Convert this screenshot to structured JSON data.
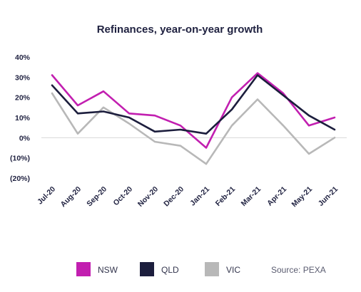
{
  "chart_data": {
    "type": "line",
    "title": "Refinances, year-on-year growth",
    "xlabel": "",
    "ylabel": "",
    "categories": [
      "Jul-20",
      "Aug-20",
      "Sep-20",
      "Oct-20",
      "Nov-20",
      "Dec-20",
      "Jan-21",
      "Feb-21",
      "Mar-21",
      "Apr-21",
      "May-21",
      "Jun-21"
    ],
    "ylim": [
      -20,
      40
    ],
    "yticks": [
      40,
      30,
      20,
      10,
      0,
      -10,
      -20
    ],
    "ytick_labels": [
      "40%",
      "30%",
      "20%",
      "10%",
      "0%",
      "(10%)",
      "(20%)"
    ],
    "series": [
      {
        "name": "NSW",
        "color": "#c21fb0",
        "values": [
          31,
          16,
          23,
          12,
          11,
          6,
          -5,
          20,
          32,
          22,
          6,
          10
        ]
      },
      {
        "name": "QLD",
        "color": "#1c1e3d",
        "values": [
          26,
          12,
          13,
          10,
          3,
          4,
          2,
          14,
          31,
          21,
          11,
          4
        ]
      },
      {
        "name": "VIC",
        "color": "#b8b8b8",
        "values": [
          22,
          2,
          15,
          7,
          -2,
          -4,
          -13,
          6,
          19,
          6,
          -8,
          0
        ]
      }
    ],
    "grid": false,
    "zero_line_color": "#d8d8d8",
    "legend": {
      "placement": "bottom",
      "source": "Source: PEXA"
    }
  }
}
